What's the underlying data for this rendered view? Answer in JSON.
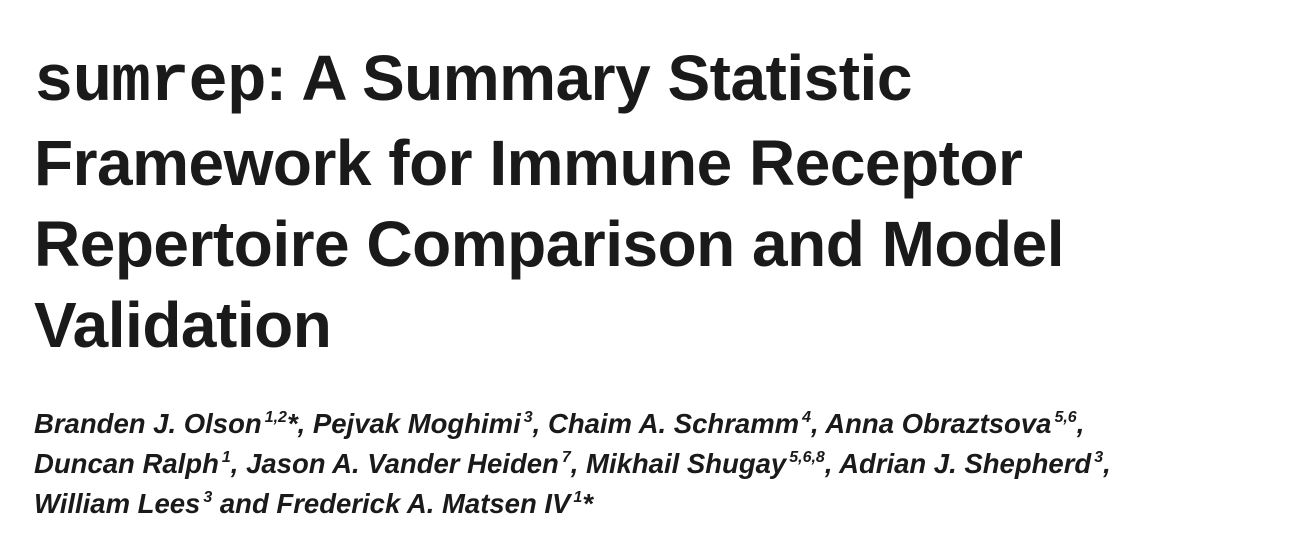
{
  "title": {
    "package_name": "sumrep",
    "line1_rest": ": A Summary Statistic",
    "line2": "Framework for Immune Receptor",
    "line3": "Repertoire Comparison and Model",
    "line4": "Validation"
  },
  "authors": [
    {
      "name": "Branden J. Olson",
      "affil": "1,2",
      "mark": "*",
      "sep": ", "
    },
    {
      "name": "Pejvak Moghimi",
      "affil": "3",
      "mark": "",
      "sep": ", "
    },
    {
      "name": "Chaim A. Schramm",
      "affil": "4",
      "mark": "",
      "sep": ", "
    },
    {
      "name": "Anna Obraztsova",
      "affil": "5,6",
      "mark": "",
      "sep": ","
    },
    {
      "name": "Duncan Ralph",
      "affil": "1",
      "mark": "",
      "sep": ", "
    },
    {
      "name": "Jason A. Vander Heiden",
      "affil": "7",
      "mark": "",
      "sep": ", "
    },
    {
      "name": "Mikhail Shugay",
      "affil": "5,6,8",
      "mark": "",
      "sep": ", "
    },
    {
      "name": "Adrian J. Shepherd",
      "affil": "3",
      "mark": "",
      "sep": ","
    },
    {
      "name": "William Lees",
      "affil": "3",
      "mark": "",
      "sep": " and "
    },
    {
      "name": "Frederick A. Matsen IV",
      "affil": "1",
      "mark": "*",
      "sep": ""
    }
  ]
}
